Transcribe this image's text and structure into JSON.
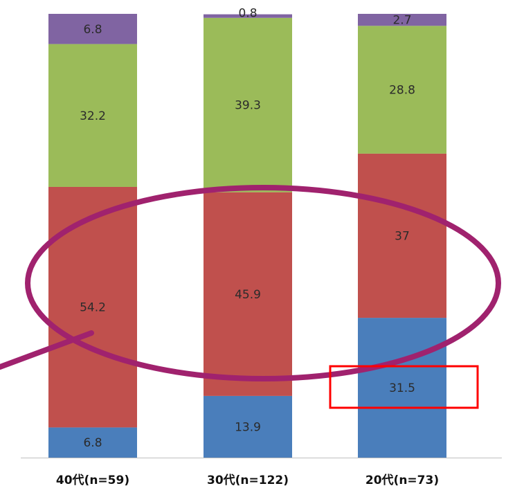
{
  "chart_data": {
    "type": "bar",
    "stacked": true,
    "orientation": "vertical",
    "categories": [
      "40代(n=59)",
      "30代(n=122)",
      "20代(n=73)"
    ],
    "series": [
      {
        "color": "#4a7ebb",
        "values": [
          6.8,
          13.9,
          31.5
        ]
      },
      {
        "color": "#c0504d",
        "values": [
          54.2,
          45.9,
          37
        ]
      },
      {
        "color": "#9bbb59",
        "values": [
          32.2,
          39.3,
          28.8
        ]
      },
      {
        "color": "#8064a2",
        "values": [
          6.8,
          0.8,
          2.7
        ]
      }
    ],
    "value_labels": [
      [
        "6.8",
        "54.2",
        "32.2",
        "6.8"
      ],
      [
        "13.9",
        "45.9",
        "39.3",
        "0.8"
      ],
      [
        "31.5",
        "37",
        "28.8",
        "2.7"
      ]
    ],
    "ylim": [
      0,
      100
    ],
    "grid": false,
    "legend": "none"
  },
  "annotations": {
    "ellipse_color": "#a0226e",
    "box_color": "#ff0000"
  }
}
